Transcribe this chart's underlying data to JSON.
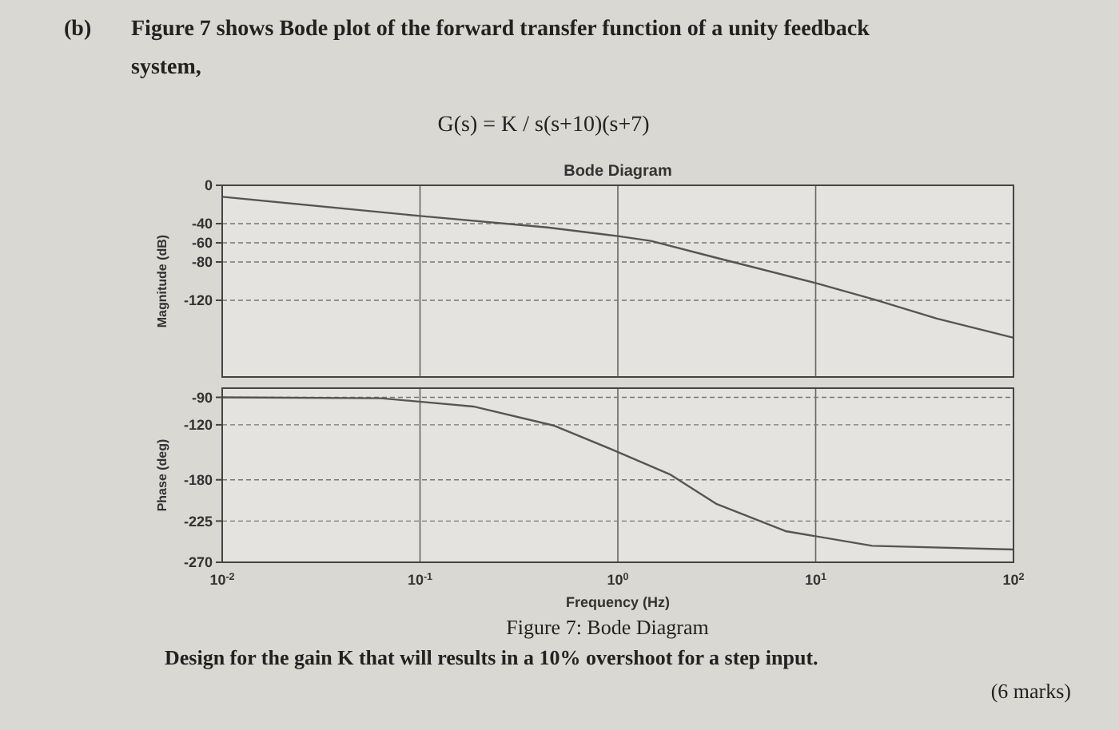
{
  "chart_data": [
    {
      "type": "line",
      "title": "Bode Diagram",
      "ylabel": "Magnitude (dB)",
      "annotations": [
        "(b)",
        "Figure 7 shows Bode plot of the forward transfer function of a unity feedback system,",
        "G(s) = K / s(s+10)(s+7)"
      ],
      "x": [
        0.01,
        0.1,
        0.44,
        1,
        1.47,
        3.06,
        10,
        19.7,
        41,
        100
      ],
      "series": [
        {
          "color": "#555555",
          "values": [
            -12,
            -32,
            -44,
            -53,
            -58,
            -75,
            -102,
            -119,
            -139,
            -159
          ]
        }
      ],
      "xlim": [
        0.01,
        100
      ],
      "xticks": [
        0.01,
        0.1,
        1,
        10,
        100
      ],
      "ylim": [
        -200,
        0
      ],
      "yticks": [
        0,
        -40,
        -60,
        -80,
        -120
      ],
      "log": "x",
      "grid": true,
      "tick_labels": "y"
    },
    {
      "type": "line",
      "xlabel": "Frequency (Hz)",
      "ylabel": "Phase (deg)",
      "annotations": [
        "Figure 7: Bode Diagram",
        "Design for the gain K that will results in a 10% overshoot for a step input.",
        "(6 marks)"
      ],
      "x": [
        0.01,
        0.0636,
        0.186,
        0.478,
        0.935,
        1.83,
        3.13,
        7.03,
        19.3,
        100
      ],
      "series": [
        {
          "color": "#555555",
          "values": [
            -90,
            -91,
            -100,
            -121,
            -147,
            -174,
            -206,
            -236,
            -252,
            -256
          ]
        }
      ],
      "xlim": [
        0.01,
        100
      ],
      "xticks": [
        {
          "value": 0.01,
          "label": "10$^{-2}$"
        },
        {
          "value": 0.1,
          "label": "10$^{-1}$"
        },
        {
          "value": 1,
          "label": "10$^{0}$"
        },
        {
          "value": 10,
          "label": "10$^{1}$"
        },
        {
          "value": 100,
          "label": "10$^{2}$"
        }
      ],
      "ylim": [
        -270,
        -80
      ],
      "yticks": [
        -90,
        -120,
        -180,
        -225,
        -270
      ],
      "log": "x",
      "grid": true
    }
  ]
}
